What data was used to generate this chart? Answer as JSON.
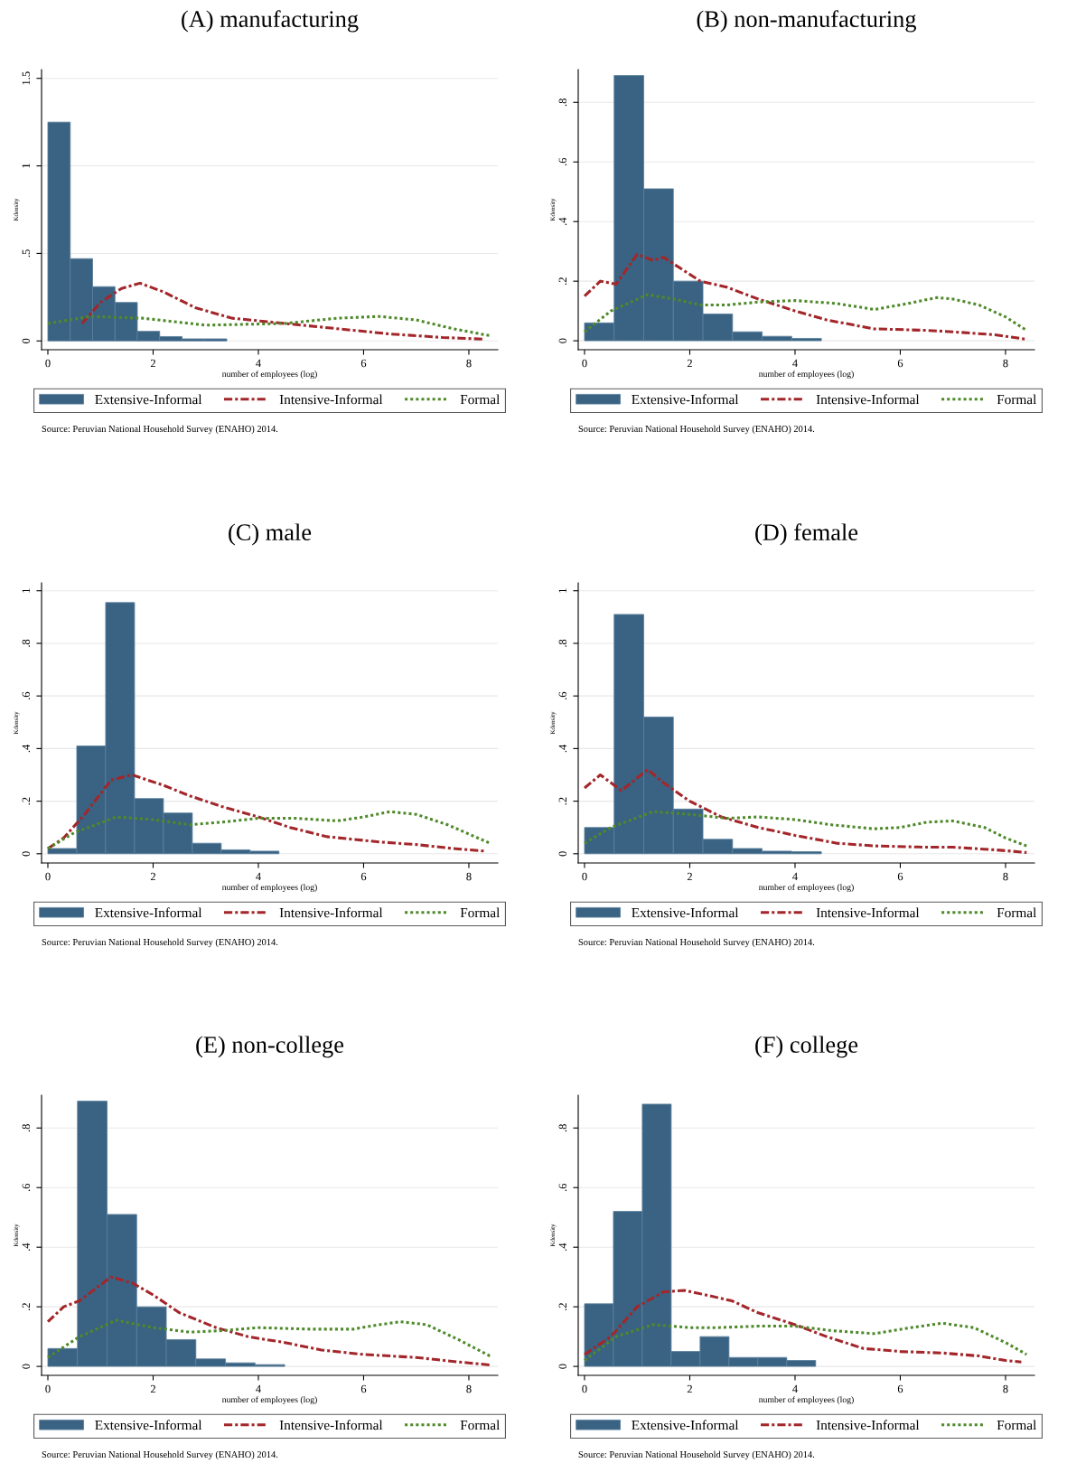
{
  "chart_data": [
    {
      "type": "histogram",
      "title": "(A) manufacturing",
      "xlabel": "number of employees (log)",
      "ylabel": "Kdensity",
      "xlim": [
        -0.12,
        8.55
      ],
      "xticks": [
        0,
        2,
        4,
        6,
        8
      ],
      "ylim": [
        -0.05,
        1.55
      ],
      "yticks": [
        0,
        {
          "value": 0.5,
          "label": ".5"
        },
        1,
        1.5
      ],
      "grid": "y",
      "legend": "bottom",
      "annotations": [
        "Source: Peruvian National Household Survey (ENAHO) 2014."
      ],
      "series": [
        {
          "name": "Extensive-Informal",
          "type": "histogram",
          "color": "#3a6282",
          "bins": [
            0,
            0.425,
            0.85,
            1.275,
            1.7,
            2.125,
            2.55,
            2.975,
            3.4
          ],
          "values": [
            1.25,
            0.47,
            0.31,
            0.22,
            0.055,
            0.025,
            0.012,
            0.012
          ]
        },
        {
          "name": "Intensive-Informal",
          "type": "line",
          "color": "#a3262a",
          "line_style": "dashed",
          "x": [
            0.65,
            1.0,
            1.4,
            1.75,
            2.2,
            2.8,
            3.5,
            4.5,
            5.5,
            6.5,
            7.5,
            8.3
          ],
          "values": [
            0.1,
            0.22,
            0.3,
            0.33,
            0.28,
            0.19,
            0.13,
            0.1,
            0.07,
            0.04,
            0.02,
            0.01
          ]
        },
        {
          "name": "Formal",
          "type": "line",
          "color": "#4e8a2a",
          "line_style": "dotted",
          "x": [
            0,
            0.8,
            1.8,
            3.0,
            4.5,
            5.5,
            6.3,
            7.0,
            7.7,
            8.4
          ],
          "values": [
            0.1,
            0.14,
            0.13,
            0.09,
            0.1,
            0.13,
            0.14,
            0.12,
            0.07,
            0.03
          ]
        }
      ]
    },
    {
      "type": "histogram",
      "title": "(B) non-manufacturing",
      "xlabel": "number of employees (log)",
      "ylabel": "Kdensity",
      "xlim": [
        -0.12,
        8.55
      ],
      "xticks": [
        0,
        2,
        4,
        6,
        8
      ],
      "ylim": [
        -0.03,
        0.91
      ],
      "yticks": [
        0,
        {
          "value": 0.2,
          "label": ".2"
        },
        {
          "value": 0.4,
          "label": ".4"
        },
        {
          "value": 0.6,
          "label": ".6"
        },
        {
          "value": 0.8,
          "label": ".8"
        }
      ],
      "grid": "y",
      "legend": "bottom",
      "annotations": [
        "Source: Peruvian National Household Survey (ENAHO) 2014."
      ],
      "series": [
        {
          "name": "Extensive-Informal",
          "type": "histogram",
          "color": "#3a6282",
          "bins": [
            0,
            0.5625,
            1.125,
            1.6875,
            2.25,
            2.8125,
            3.375,
            3.9375,
            4.5
          ],
          "values": [
            0.06,
            0.89,
            0.51,
            0.2,
            0.09,
            0.03,
            0.015,
            0.008
          ]
        },
        {
          "name": "Intensive-Informal",
          "type": "line",
          "color": "#a3262a",
          "line_style": "dashed",
          "x": [
            0,
            0.3,
            0.6,
            1.0,
            1.3,
            1.5,
            2.2,
            2.7,
            3.3,
            4.0,
            4.6,
            5.5,
            6.5,
            7.0,
            7.8,
            8.4
          ],
          "values": [
            0.15,
            0.2,
            0.19,
            0.29,
            0.27,
            0.28,
            0.2,
            0.18,
            0.14,
            0.1,
            0.07,
            0.04,
            0.035,
            0.03,
            0.02,
            0.005
          ]
        },
        {
          "name": "Formal",
          "type": "line",
          "color": "#4e8a2a",
          "line_style": "dotted",
          "x": [
            0,
            0.5,
            1.2,
            1.7,
            2.2,
            2.7,
            3.3,
            4.0,
            4.8,
            5.5,
            6.0,
            6.7,
            7.0,
            7.5,
            8.0,
            8.4
          ],
          "values": [
            0.03,
            0.1,
            0.155,
            0.14,
            0.12,
            0.12,
            0.13,
            0.135,
            0.125,
            0.105,
            0.12,
            0.145,
            0.14,
            0.12,
            0.08,
            0.035
          ]
        }
      ]
    },
    {
      "type": "histogram",
      "title": "(C) male",
      "xlabel": "number of employees (log)",
      "ylabel": "Kdensity",
      "xlim": [
        -0.12,
        8.55
      ],
      "xticks": [
        0,
        2,
        4,
        6,
        8
      ],
      "ylim": [
        -0.035,
        1.03
      ],
      "yticks": [
        0,
        {
          "value": 0.2,
          "label": ".2"
        },
        {
          "value": 0.4,
          "label": ".4"
        },
        {
          "value": 0.6,
          "label": ".6"
        },
        {
          "value": 0.8,
          "label": ".8"
        },
        1
      ],
      "grid": "y",
      "legend": "bottom",
      "annotations": [
        "Source: Peruvian National Household Survey (ENAHO) 2014."
      ],
      "series": [
        {
          "name": "Extensive-Informal",
          "type": "histogram",
          "color": "#3a6282",
          "bins": [
            0,
            0.549,
            1.098,
            1.647,
            2.196,
            2.745,
            3.294,
            3.843,
            4.392
          ],
          "values": [
            0.02,
            0.41,
            0.955,
            0.21,
            0.155,
            0.04,
            0.015,
            0.01
          ]
        },
        {
          "name": "Intensive-Informal",
          "type": "line",
          "color": "#a3262a",
          "line_style": "dashed",
          "x": [
            0,
            0.3,
            0.7,
            1.2,
            1.6,
            2.2,
            2.7,
            3.3,
            4.0,
            4.6,
            5.3,
            6.3,
            7.0,
            7.7,
            8.3
          ],
          "values": [
            0.02,
            0.06,
            0.15,
            0.28,
            0.3,
            0.26,
            0.22,
            0.18,
            0.14,
            0.1,
            0.065,
            0.045,
            0.035,
            0.02,
            0.01
          ]
        },
        {
          "name": "Formal",
          "type": "line",
          "color": "#4e8a2a",
          "line_style": "dotted",
          "x": [
            0,
            0.5,
            1.3,
            2.0,
            2.7,
            3.3,
            4.0,
            4.7,
            5.5,
            6.0,
            6.5,
            7.0,
            7.6,
            8.4
          ],
          "values": [
            0.02,
            0.08,
            0.14,
            0.13,
            0.11,
            0.12,
            0.135,
            0.135,
            0.125,
            0.14,
            0.16,
            0.15,
            0.11,
            0.04
          ]
        }
      ]
    },
    {
      "type": "histogram",
      "title": "(D) female",
      "xlabel": "number of employees (log)",
      "ylabel": "Kdensity",
      "xlim": [
        -0.12,
        8.55
      ],
      "xticks": [
        0,
        2,
        4,
        6,
        8
      ],
      "ylim": [
        -0.035,
        1.03
      ],
      "yticks": [
        0,
        {
          "value": 0.2,
          "label": ".2"
        },
        {
          "value": 0.4,
          "label": ".4"
        },
        {
          "value": 0.6,
          "label": ".6"
        },
        {
          "value": 0.8,
          "label": ".8"
        },
        1
      ],
      "grid": "y",
      "legend": "bottom",
      "annotations": [
        "Source: Peruvian National Household Survey (ENAHO) 2014."
      ],
      "series": [
        {
          "name": "Extensive-Informal",
          "type": "histogram",
          "color": "#3a6282",
          "bins": [
            0,
            0.5625,
            1.125,
            1.6875,
            2.25,
            2.8125,
            3.375,
            3.9375,
            4.5
          ],
          "values": [
            0.1,
            0.91,
            0.52,
            0.17,
            0.055,
            0.02,
            0.01,
            0.008
          ]
        },
        {
          "name": "Intensive-Informal",
          "type": "line",
          "color": "#a3262a",
          "line_style": "dashed",
          "x": [
            0,
            0.3,
            0.7,
            1.2,
            1.5,
            2.0,
            2.6,
            3.3,
            4.0,
            4.8,
            5.5,
            6.5,
            7.0,
            7.8,
            8.4
          ],
          "values": [
            0.25,
            0.3,
            0.24,
            0.32,
            0.27,
            0.2,
            0.14,
            0.1,
            0.07,
            0.04,
            0.03,
            0.025,
            0.025,
            0.015,
            0.005
          ]
        },
        {
          "name": "Formal",
          "type": "line",
          "color": "#4e8a2a",
          "line_style": "dotted",
          "x": [
            0,
            0.5,
            1.3,
            2.0,
            2.7,
            3.3,
            4.0,
            4.7,
            5.5,
            6.0,
            6.5,
            7.0,
            7.6,
            8.0,
            8.4
          ],
          "values": [
            0.04,
            0.1,
            0.16,
            0.15,
            0.135,
            0.14,
            0.13,
            0.11,
            0.095,
            0.1,
            0.12,
            0.125,
            0.1,
            0.06,
            0.03
          ]
        }
      ]
    },
    {
      "type": "histogram",
      "title": "(E) non-college",
      "xlabel": "number of employees (log)",
      "ylabel": "Kdensity",
      "xlim": [
        -0.12,
        8.55
      ],
      "xticks": [
        0,
        2,
        4,
        6,
        8
      ],
      "ylim": [
        -0.03,
        0.91
      ],
      "yticks": [
        0,
        {
          "value": 0.2,
          "label": ".2"
        },
        {
          "value": 0.4,
          "label": ".4"
        },
        {
          "value": 0.6,
          "label": ".6"
        },
        {
          "value": 0.8,
          "label": ".8"
        }
      ],
      "grid": "y",
      "legend": "bottom",
      "annotations": [
        "Source: Peruvian National Household Survey (ENAHO) 2014."
      ],
      "series": [
        {
          "name": "Extensive-Informal",
          "type": "histogram",
          "color": "#3a6282",
          "bins": [
            0,
            0.5625,
            1.125,
            1.6875,
            2.25,
            2.8125,
            3.375,
            3.9375,
            4.5
          ],
          "values": [
            0.06,
            0.89,
            0.51,
            0.2,
            0.09,
            0.025,
            0.012,
            0.006
          ]
        },
        {
          "name": "Intensive-Informal",
          "type": "line",
          "color": "#a3262a",
          "line_style": "dashed",
          "x": [
            0,
            0.3,
            0.6,
            1.2,
            1.6,
            2.0,
            2.5,
            3.2,
            3.8,
            4.5,
            5.2,
            6.0,
            7.0,
            7.8,
            8.4
          ],
          "values": [
            0.15,
            0.2,
            0.22,
            0.3,
            0.28,
            0.24,
            0.18,
            0.13,
            0.1,
            0.08,
            0.055,
            0.04,
            0.03,
            0.015,
            0.005
          ]
        },
        {
          "name": "Formal",
          "type": "line",
          "color": "#4e8a2a",
          "line_style": "dotted",
          "x": [
            0,
            0.6,
            1.3,
            2.0,
            2.7,
            3.3,
            4.0,
            5.0,
            5.8,
            6.3,
            6.7,
            7.2,
            7.8,
            8.4
          ],
          "values": [
            0.03,
            0.1,
            0.155,
            0.13,
            0.115,
            0.12,
            0.13,
            0.125,
            0.125,
            0.14,
            0.15,
            0.14,
            0.09,
            0.035
          ]
        }
      ]
    },
    {
      "type": "histogram",
      "title": "(F) college",
      "xlabel": "number of employees (log)",
      "ylabel": "Kdensity",
      "xlim": [
        -0.12,
        8.55
      ],
      "xticks": [
        0,
        2,
        4,
        6,
        8
      ],
      "ylim": [
        -0.03,
        0.91
      ],
      "yticks": [
        0,
        {
          "value": 0.2,
          "label": ".2"
        },
        {
          "value": 0.4,
          "label": ".4"
        },
        {
          "value": 0.6,
          "label": ".6"
        },
        {
          "value": 0.8,
          "label": ".8"
        }
      ],
      "grid": "y",
      "legend": "bottom",
      "annotations": [
        "Source: Peruvian National Household Survey (ENAHO) 2014."
      ],
      "series": [
        {
          "name": "Extensive-Informal",
          "type": "histogram",
          "color": "#3a6282",
          "bins": [
            0,
            0.549,
            1.098,
            1.647,
            2.196,
            2.745,
            3.294,
            3.843,
            4.392
          ],
          "values": [
            0.21,
            0.52,
            0.88,
            0.05,
            0.1,
            0.03,
            0.03,
            0.02
          ]
        },
        {
          "name": "Intensive-Informal",
          "type": "line",
          "color": "#a3262a",
          "line_style": "dashed",
          "x": [
            0,
            0.5,
            1.0,
            1.5,
            1.9,
            2.3,
            2.8,
            3.3,
            4.0,
            4.6,
            5.3,
            6.0,
            6.8,
            7.5,
            8.0,
            8.3
          ],
          "values": [
            0.04,
            0.1,
            0.2,
            0.25,
            0.255,
            0.24,
            0.22,
            0.18,
            0.14,
            0.1,
            0.06,
            0.05,
            0.045,
            0.035,
            0.02,
            0.015
          ]
        },
        {
          "name": "Formal",
          "type": "line",
          "color": "#4e8a2a",
          "line_style": "dotted",
          "x": [
            0,
            0.6,
            1.3,
            2.0,
            2.5,
            3.3,
            4.0,
            4.7,
            5.5,
            6.2,
            6.8,
            7.4,
            8.0,
            8.4
          ],
          "values": [
            0.02,
            0.1,
            0.14,
            0.13,
            0.13,
            0.135,
            0.135,
            0.12,
            0.11,
            0.13,
            0.145,
            0.13,
            0.08,
            0.04
          ]
        }
      ]
    }
  ]
}
